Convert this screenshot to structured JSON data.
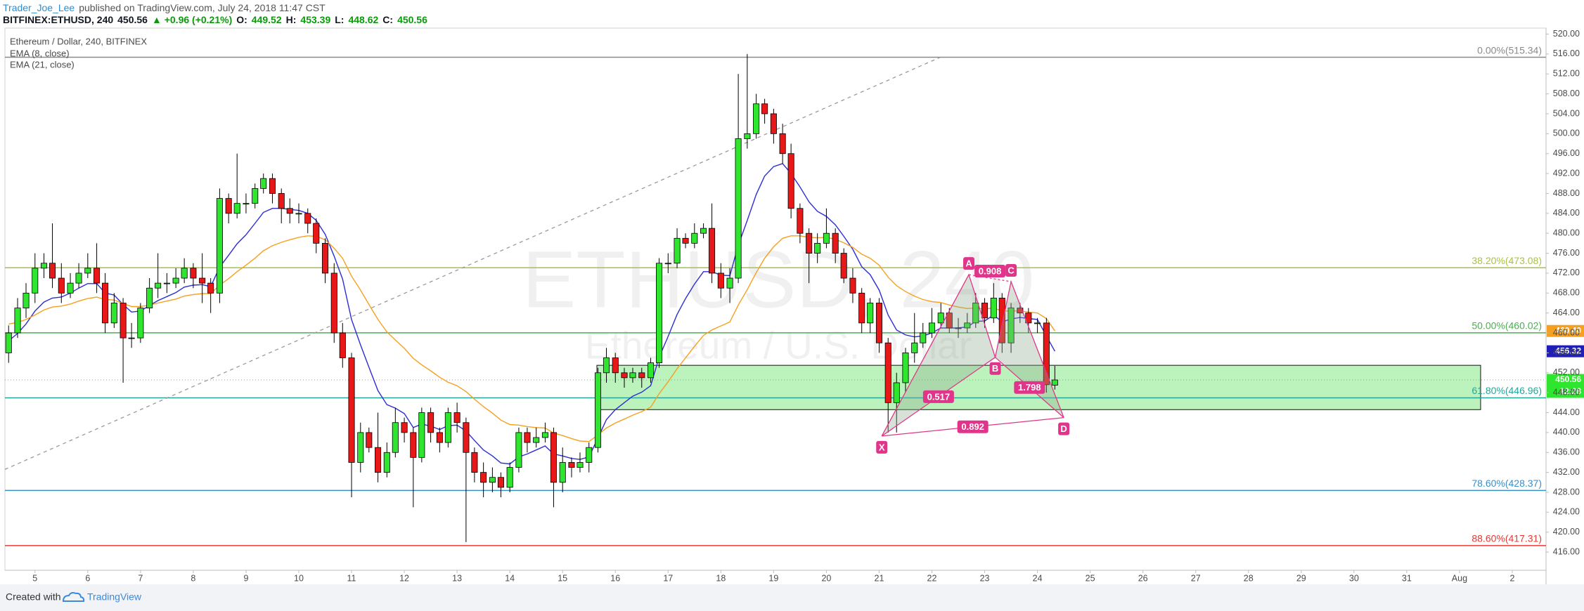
{
  "header": {
    "line1": [
      {
        "text": "Trader_Joe_Lee",
        "color": "#2b8fd6"
      },
      {
        "text": "published on TradingView.com, July 24, 2018 11:47 CST",
        "color": "#555555"
      }
    ],
    "line2": [
      {
        "text": "BITFINEX:ETHUSD, 240",
        "color": "#131722"
      },
      {
        "text": "450.56",
        "color": "#131722"
      },
      {
        "text": "▲ +0.96 (+0.21%)",
        "color": "#0a9a0a"
      },
      {
        "text": "O:",
        "color": "#131722"
      },
      {
        "text": "449.52",
        "color": "#0a9a0a"
      },
      {
        "text": "H:",
        "color": "#131722"
      },
      {
        "text": "453.39",
        "color": "#0a9a0a"
      },
      {
        "text": "L:",
        "color": "#131722"
      },
      {
        "text": "448.62",
        "color": "#0a9a0a"
      },
      {
        "text": "C:",
        "color": "#131722"
      },
      {
        "text": "450.56",
        "color": "#0a9a0a"
      }
    ]
  },
  "chart_data": {
    "type": "candlestick",
    "title": "Ethereum / Dollar, 240, BITFINEX",
    "watermark": [
      "ETHUSD, 240",
      "Ethereum / U.S. Dollar"
    ],
    "up_color": "#2ee62e",
    "down_color": "#e81818",
    "wick_color": "#000000",
    "xlim": [
      4.43,
      33.64
    ],
    "xticks": [
      5,
      6,
      7,
      8,
      9,
      10,
      11,
      12,
      13,
      14,
      15,
      16,
      17,
      18,
      19,
      20,
      21,
      22,
      23,
      24,
      25,
      26,
      27,
      28,
      29,
      30,
      31,
      {
        "value": 32,
        "label": "Aug"
      },
      {
        "value": 33,
        "label": "2"
      }
    ],
    "ylim": [
      412.35,
      521.2
    ],
    "yticks": [
      {
        "value": 416,
        "label": "416.00"
      },
      {
        "value": 420,
        "label": "420.00"
      },
      {
        "value": 424,
        "label": "424.00"
      },
      {
        "value": 428,
        "label": "428.00"
      },
      {
        "value": 432,
        "label": "432.00"
      },
      {
        "value": 436,
        "label": "436.00"
      },
      {
        "value": 440,
        "label": "440.00"
      },
      {
        "value": 444,
        "label": "444.00"
      },
      {
        "value": 448,
        "label": "448.00"
      },
      {
        "value": 452,
        "label": "452.00"
      },
      {
        "value": 456,
        "label": "456.00"
      },
      {
        "value": 460,
        "label": "460.00"
      },
      {
        "value": 464,
        "label": "464.00"
      },
      {
        "value": 468,
        "label": "468.00"
      },
      {
        "value": 472,
        "label": "472.00"
      },
      {
        "value": 476,
        "label": "476.00"
      },
      {
        "value": 480,
        "label": "480.00"
      },
      {
        "value": 484,
        "label": "484.00"
      },
      {
        "value": 488,
        "label": "488.00"
      },
      {
        "value": 492,
        "label": "492.00"
      },
      {
        "value": 496,
        "label": "496.00"
      },
      {
        "value": 500,
        "label": "500.00"
      },
      {
        "value": 504,
        "label": "504.00"
      },
      {
        "value": 508,
        "label": "508.00"
      },
      {
        "value": 512,
        "label": "512.00"
      },
      {
        "value": 516,
        "label": "516.00"
      },
      {
        "value": 520,
        "label": "520.00"
      }
    ],
    "x": [
      4.5,
      4.67,
      4.83,
      5,
      5.17,
      5.33,
      5.5,
      5.67,
      5.83,
      6,
      6.17,
      6.33,
      6.5,
      6.67,
      6.83,
      7,
      7.17,
      7.33,
      7.5,
      7.67,
      7.83,
      8,
      8.17,
      8.33,
      8.5,
      8.67,
      8.83,
      9,
      9.17,
      9.33,
      9.5,
      9.67,
      9.83,
      10,
      10.17,
      10.33,
      10.5,
      10.67,
      10.83,
      11,
      11.17,
      11.33,
      11.5,
      11.67,
      11.83,
      12,
      12.17,
      12.33,
      12.5,
      12.67,
      12.83,
      13,
      13.17,
      13.33,
      13.5,
      13.67,
      13.83,
      14,
      14.17,
      14.33,
      14.5,
      14.67,
      14.83,
      15,
      15.17,
      15.33,
      15.5,
      15.67,
      15.83,
      16,
      16.17,
      16.33,
      16.5,
      16.67,
      16.83,
      17,
      17.17,
      17.33,
      17.5,
      17.67,
      17.83,
      18,
      18.17,
      18.33,
      18.5,
      18.67,
      18.83,
      19,
      19.17,
      19.33,
      19.5,
      19.67,
      19.83,
      20,
      20.17,
      20.33,
      20.5,
      20.67,
      20.83,
      21,
      21.17,
      21.33,
      21.5,
      21.67,
      21.83,
      22,
      22.17,
      22.33,
      22.5,
      22.67,
      22.83,
      23,
      23.17,
      23.33,
      23.5,
      23.67,
      23.83,
      24,
      24.17,
      24.33
    ],
    "open": [
      456,
      460,
      465,
      468,
      473,
      474,
      471,
      468,
      470,
      472,
      473,
      470,
      462,
      466,
      459,
      459,
      465,
      469,
      470,
      470,
      471,
      473,
      471,
      470,
      468,
      487,
      484,
      486,
      486,
      489,
      491,
      488,
      485,
      484,
      484,
      482,
      478,
      472,
      460,
      455,
      434,
      440,
      437,
      432,
      436,
      442,
      440,
      435,
      444,
      440,
      438,
      444,
      442,
      436,
      432,
      430,
      431,
      429,
      433,
      440,
      438,
      439,
      440,
      430,
      434,
      433,
      434,
      437,
      452,
      455,
      452,
      451,
      452,
      451,
      454,
      474,
      474,
      479,
      478,
      480,
      481,
      472,
      469,
      471,
      499,
      500,
      506,
      504,
      500,
      496,
      485,
      480,
      476,
      478,
      480,
      476,
      471,
      468,
      462,
      466,
      458,
      446,
      450,
      456,
      458,
      460,
      462,
      464,
      461,
      461,
      462,
      466,
      463,
      467,
      458,
      465,
      464,
      462,
      462,
      449.52
    ],
    "high": [
      461.5,
      467,
      470,
      476,
      476,
      482,
      474,
      472,
      474,
      476,
      478,
      472,
      468,
      467,
      462,
      466,
      471,
      476,
      472,
      473,
      475,
      474,
      476,
      471,
      489,
      488,
      496,
      488,
      490,
      492,
      492,
      489,
      487,
      486,
      485,
      483,
      479,
      474,
      462,
      456,
      442,
      441,
      444,
      438,
      445,
      443,
      441,
      445,
      445,
      441,
      445,
      446,
      443,
      437,
      434,
      433,
      432,
      434,
      441,
      441,
      441,
      442,
      441,
      437,
      435,
      436,
      438,
      453,
      457,
      456,
      453,
      453,
      453,
      455,
      475,
      476,
      481,
      480,
      482,
      482,
      486,
      474,
      473,
      512,
      516,
      508,
      507,
      505,
      502,
      498,
      486,
      481,
      480,
      485,
      481,
      477,
      473,
      469,
      467,
      467,
      459,
      452,
      457,
      464,
      462,
      465,
      466,
      465,
      463,
      464,
      468,
      467,
      470,
      468,
      466,
      466,
      465,
      463,
      463,
      453.39
    ],
    "low": [
      454,
      459,
      463,
      466,
      471,
      469,
      466,
      467,
      469,
      471,
      468,
      460,
      461,
      450,
      457,
      458,
      464,
      467,
      468,
      469,
      470,
      469,
      466,
      464,
      466,
      482,
      483,
      484,
      485,
      488,
      486,
      482,
      482,
      482,
      480,
      476,
      470,
      458,
      453,
      427,
      432,
      436,
      430,
      431,
      435,
      438,
      425,
      434,
      438,
      436,
      437,
      440,
      418,
      430,
      427,
      428,
      427,
      428,
      432,
      436,
      437,
      438,
      425,
      428,
      431,
      432,
      432,
      436,
      450,
      450,
      449,
      450,
      449,
      450,
      453,
      472,
      473,
      477,
      477,
      479,
      470,
      467,
      466,
      470,
      497,
      499,
      502,
      498,
      494,
      483,
      478,
      470,
      474,
      477,
      474,
      470,
      466,
      460,
      460,
      456,
      440,
      440,
      448,
      454,
      457,
      459,
      461,
      460,
      459,
      460,
      461,
      461,
      462,
      456,
      456,
      462,
      460,
      460,
      448,
      448.62
    ],
    "close": [
      460,
      465,
      468,
      473,
      474,
      471,
      468,
      470,
      472,
      473,
      470,
      462,
      466,
      459,
      459,
      465,
      469,
      470,
      470,
      471,
      473,
      471,
      470,
      468,
      487,
      484,
      486,
      486,
      489,
      491,
      488,
      485,
      484,
      484,
      482,
      478,
      472,
      460,
      455,
      434,
      440,
      437,
      432,
      436,
      442,
      440,
      435,
      444,
      440,
      438,
      444,
      442,
      436,
      432,
      430,
      431,
      429,
      433,
      440,
      438,
      439,
      440,
      430,
      434,
      433,
      434,
      437,
      452,
      455,
      452,
      451,
      452,
      451,
      454,
      474,
      474,
      479,
      478,
      480,
      481,
      472,
      469,
      471,
      499,
      500,
      506,
      504,
      500,
      496,
      485,
      480,
      476,
      478,
      480,
      476,
      471,
      468,
      462,
      466,
      458,
      446,
      450,
      456,
      458,
      460,
      462,
      464,
      461,
      461,
      462,
      466,
      463,
      467,
      458,
      465,
      464,
      462,
      462,
      449.6,
      450.56
    ],
    "series": [
      {
        "name": "EMA (8, close)",
        "color": "#2d2dd6",
        "values": [
          458.4,
          459.9,
          461.8,
          464.4,
          466.2,
          467.0,
          467.2,
          468.0,
          469.0,
          469.9,
          469.9,
          468.0,
          467.6,
          465.7,
          464.2,
          464.4,
          465.5,
          466.5,
          467.3,
          468.1,
          469.2,
          469.6,
          469.7,
          469.3,
          473.2,
          475.6,
          477.9,
          479.7,
          482.0,
          484.2,
          485.0,
          485.0,
          484.8,
          484.6,
          484.0,
          482.6,
          479.8,
          475.4,
          470.8,
          462.7,
          457.6,
          453.1,
          448.4,
          445.6,
          444.9,
          443.8,
          441.0,
          441.7,
          441.3,
          440.6,
          441.4,
          441.5,
          440.3,
          438.4,
          436.5,
          435.3,
          433.9,
          433.7,
          435.1,
          435.7,
          436.5,
          437.3,
          435.7,
          435.3,
          434.8,
          434.6,
          435.1,
          438.9,
          442.6,
          444.6,
          446.0,
          447.3,
          448.1,
          449.4,
          455.1,
          459.3,
          463.7,
          466.9,
          469.8,
          472.3,
          472.3,
          471.6,
          471.5,
          477.6,
          482.6,
          487.8,
          491.5,
          493.4,
          494.0,
          492.0,
          489.3,
          486.3,
          484.4,
          483.4,
          481.7,
          479.4,
          476.8,
          473.3,
          471.7,
          468.6,
          463.6,
          460.6,
          459.6,
          459.2,
          459.4,
          460.0,
          461.0,
          461.0,
          461.0,
          461.2,
          462.3,
          462.4,
          463.6,
          462.2,
          462.8,
          463.1,
          462.9,
          462.7,
          459.4,
          456.32
        ]
      },
      {
        "name": "EMA (21, close)",
        "color": "#f5a020",
        "values": [
          461.8,
          462.1,
          462.7,
          463.6,
          464.6,
          465.2,
          465.4,
          465.8,
          466.4,
          466.9,
          467.2,
          466.7,
          466.6,
          465.9,
          465.3,
          465.3,
          465.6,
          466.0,
          466.4,
          466.8,
          467.4,
          467.7,
          467.9,
          467.9,
          469.6,
          470.9,
          472.3,
          473.6,
          475.0,
          476.5,
          477.5,
          478.2,
          478.7,
          479.2,
          479.5,
          479.4,
          478.7,
          477.0,
          475.0,
          471.4,
          468.6,
          465.7,
          462.7,
          460.2,
          458.6,
          456.9,
          454.9,
          453.6,
          452.4,
          451.1,
          450.1,
          449.4,
          448.2,
          446.7,
          445.2,
          443.9,
          442.5,
          441.6,
          441.5,
          441.2,
          441.0,
          440.9,
          439.9,
          439.4,
          438.8,
          438.3,
          438.2,
          439.5,
          440.9,
          441.9,
          442.7,
          443.5,
          444.2,
          445.1,
          447.8,
          450.2,
          452.8,
          455.0,
          457.3,
          459.5,
          460.6,
          461.4,
          462.2,
          465.6,
          468.7,
          472.1,
          475.0,
          477.3,
          479.0,
          479.5,
          479.5,
          479.2,
          479.1,
          479.2,
          478.8,
          478.1,
          477.2,
          475.8,
          475.0,
          473.6,
          471.2,
          469.5,
          468.3,
          467.4,
          466.7,
          466.3,
          466.1,
          465.6,
          465.2,
          464.9,
          465.0,
          464.8,
          465.0,
          464.4,
          464.4,
          464.4,
          464.2,
          464.0,
          462.9,
          460.4
        ]
      }
    ],
    "levels": [
      {
        "label": "0.00%(515.34)",
        "value": 515.34,
        "color": "#8a8a8a"
      },
      {
        "label": "38.20%(473.08)",
        "value": 473.08,
        "color": "#a9c23f"
      },
      {
        "label": "50.00%(460.02)",
        "value": 460.02,
        "color": "#4caf50"
      },
      {
        "label": "61.80%(446.96)",
        "value": 446.96,
        "color": "#26a69a"
      },
      {
        "label": "78.60%(428.37)",
        "value": 428.37,
        "color": "#3a8fc8"
      },
      {
        "label": "88.60%(417.31)",
        "value": 417.31,
        "color": "#e53935"
      }
    ],
    "zone": {
      "x": [
        15.65,
        32.4
      ],
      "y": [
        444.6,
        453.5
      ],
      "color": "#3fdc3f"
    },
    "trendline": {
      "x": [
        4.43,
        22.15
      ],
      "y": [
        432.6,
        515.3
      ],
      "color": "#9a9a9a"
    },
    "pattern": {
      "color": "#e0358a",
      "points": [
        {
          "label": "X",
          "x": 21.05,
          "y": 439.3
        },
        {
          "label": "A",
          "x": 22.7,
          "y": 471.7
        },
        {
          "label": "B",
          "x": 23.2,
          "y": 455.1
        },
        {
          "label": "C",
          "x": 23.5,
          "y": 470.3
        },
        {
          "label": "D",
          "x": 24.5,
          "y": 443.0
        }
      ],
      "ratios": [
        0.517,
        0.908,
        1.798,
        0.892
      ]
    },
    "price_tags": [
      {
        "value": 460.4,
        "label": "460.40",
        "color": "#f5a020"
      },
      {
        "value": 456.32,
        "label": "456.32",
        "color": "#1f1fb8"
      },
      {
        "value": 450.56,
        "label": "450.56",
        "color": "#2ee62e"
      }
    ],
    "countdown": "12:28"
  },
  "footer": {
    "created": "Created with",
    "brand": "TradingView"
  }
}
